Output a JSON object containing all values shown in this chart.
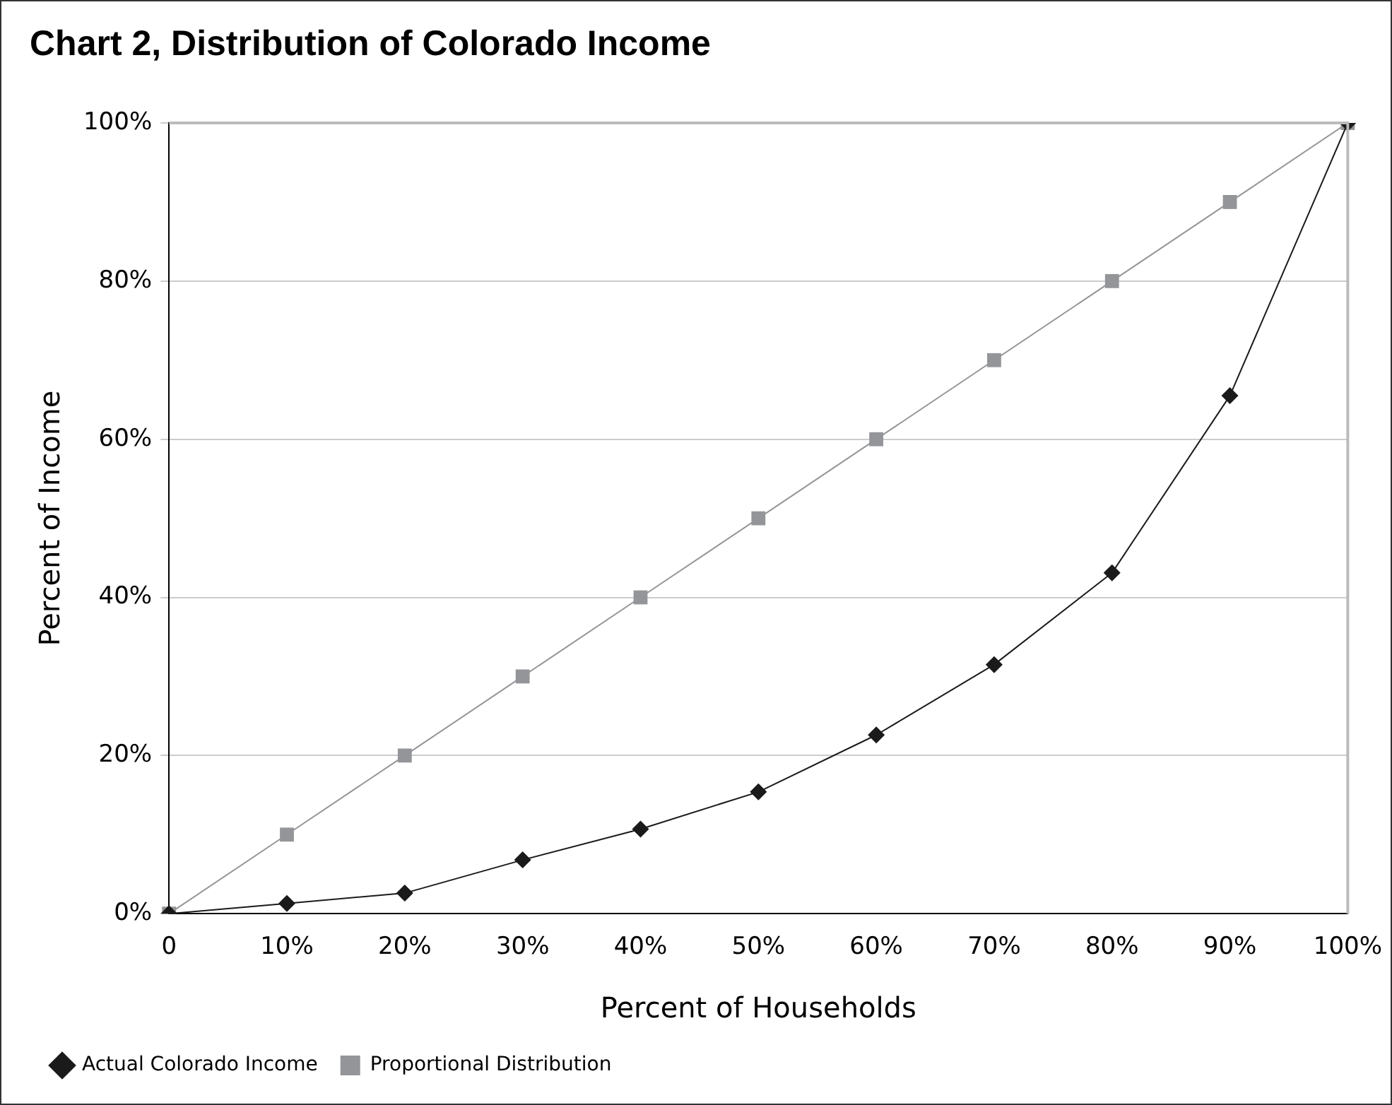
{
  "chart_data": {
    "type": "line",
    "title": "Chart 2, Distribution of Colorado Income",
    "xlabel": "Percent of Households",
    "ylabel": "Percent of Income",
    "categories": [
      "0",
      "10%",
      "20%",
      "30%",
      "40%",
      "50%",
      "60%",
      "70%",
      "80%",
      "90%",
      "100%"
    ],
    "series": [
      {
        "name": "Actual Colorado Income",
        "color": "#1a1a1a",
        "marker": "diamond",
        "values": [
          0,
          1.3,
          2.6,
          6.8,
          10.7,
          15.4,
          22.6,
          31.5,
          43.1,
          65.5,
          100
        ]
      },
      {
        "name": "Proportional Distribution",
        "color": "#939598",
        "marker": "square",
        "values": [
          0,
          10,
          20,
          30,
          40,
          50,
          60,
          70,
          80,
          90,
          100
        ]
      }
    ],
    "ylim": [
      0,
      100
    ],
    "yticks": [
      {
        "value": 0,
        "label": "0%"
      },
      {
        "value": 20,
        "label": "20%"
      },
      {
        "value": 40,
        "label": "40%"
      },
      {
        "value": 60,
        "label": "60%"
      },
      {
        "value": 80,
        "label": "80%"
      },
      {
        "value": 100,
        "label": "100%"
      }
    ],
    "grid": "y",
    "legend": "bottom left",
    "line_style": "solid"
  }
}
